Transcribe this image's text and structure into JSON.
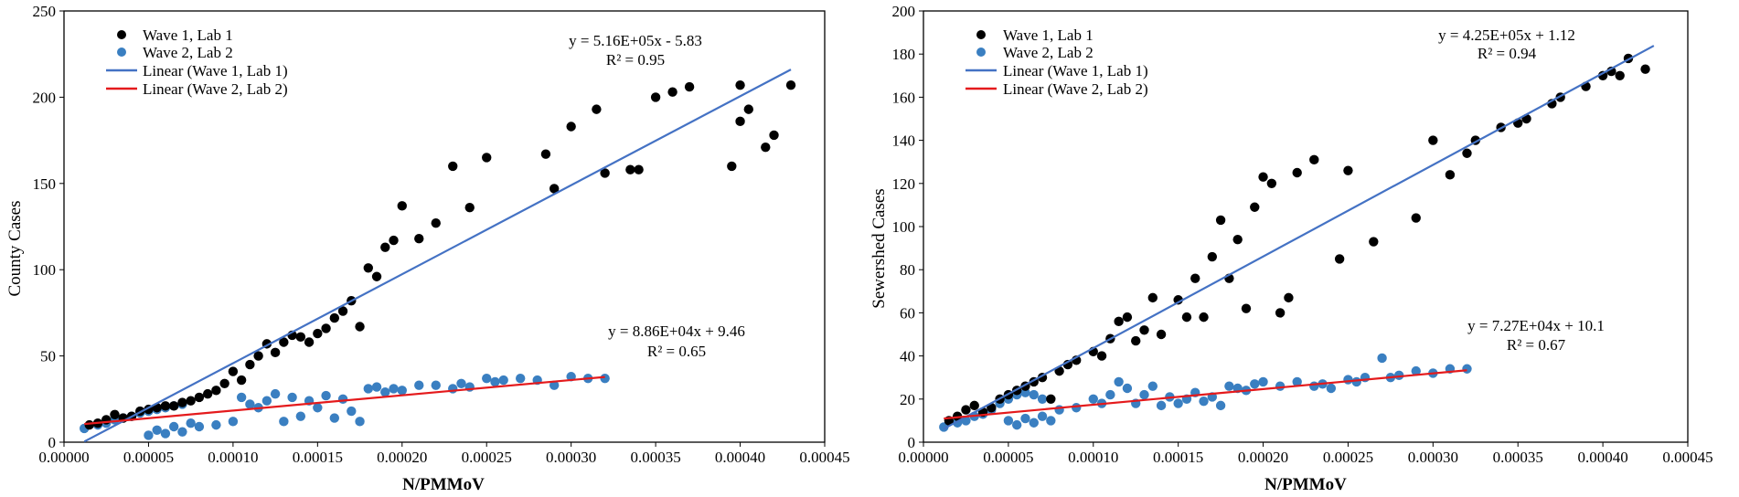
{
  "colors": {
    "wave1": "#000000",
    "wave2": "#3a7fc1",
    "linear1": "#4472c4",
    "linear2": "#e41a1c"
  },
  "chart_data": [
    {
      "type": "scatter",
      "xlabel": "N/PMMoV",
      "ylabel": "County Cases",
      "xlim": [
        0,
        0.00045
      ],
      "ylim": [
        0,
        250
      ],
      "xticks": [
        "0.00000",
        "0.00005",
        "0.00010",
        "0.00015",
        "0.00020",
        "0.00025",
        "0.00030",
        "0.00035",
        "0.00040",
        "0.00045"
      ],
      "yticks": [
        "0",
        "50",
        "100",
        "150",
        "200",
        "250"
      ],
      "legend": [
        "Wave 1, Lab 1",
        "Wave 2, Lab 2",
        "Linear (Wave 1, Lab 1)",
        "Linear (Wave 2, Lab 2)"
      ],
      "annotations": {
        "eq1": "y = 5.16E+05x - 5.83",
        "r1": "R² = 0.95",
        "eq2": "y = 8.86E+04x + 9.46",
        "r2": "R² = 0.65"
      },
      "series": [
        {
          "name": "Wave 1, Lab 1",
          "points": [
            [
              1.5e-05,
              10
            ],
            [
              2e-05,
              11
            ],
            [
              2.5e-05,
              13
            ],
            [
              3e-05,
              16
            ],
            [
              3.5e-05,
              14
            ],
            [
              4e-05,
              15
            ],
            [
              4.5e-05,
              18
            ],
            [
              5e-05,
              19
            ],
            [
              5.5e-05,
              20
            ],
            [
              6e-05,
              21
            ],
            [
              6.5e-05,
              21
            ],
            [
              7e-05,
              23
            ],
            [
              7.5e-05,
              24
            ],
            [
              8e-05,
              26
            ],
            [
              8.5e-05,
              28
            ],
            [
              9e-05,
              30
            ],
            [
              9.5e-05,
              34
            ],
            [
              0.0001,
              41
            ],
            [
              0.000105,
              36
            ],
            [
              0.00011,
              45
            ],
            [
              0.000115,
              50
            ],
            [
              0.00012,
              57
            ],
            [
              0.000125,
              52
            ],
            [
              0.00013,
              58
            ],
            [
              0.000135,
              62
            ],
            [
              0.00014,
              61
            ],
            [
              0.000145,
              58
            ],
            [
              0.00015,
              63
            ],
            [
              0.000155,
              66
            ],
            [
              0.00016,
              72
            ],
            [
              0.000165,
              76
            ],
            [
              0.00017,
              82
            ],
            [
              0.000175,
              67
            ],
            [
              0.00018,
              101
            ],
            [
              0.000185,
              96
            ],
            [
              0.00019,
              113
            ],
            [
              0.000195,
              117
            ],
            [
              0.0002,
              137
            ],
            [
              0.00021,
              118
            ],
            [
              0.00022,
              127
            ],
            [
              0.00023,
              160
            ],
            [
              0.00024,
              136
            ],
            [
              0.00025,
              165
            ],
            [
              0.000285,
              167
            ],
            [
              0.00029,
              147
            ],
            [
              0.0003,
              183
            ],
            [
              0.000315,
              193
            ],
            [
              0.00032,
              156
            ],
            [
              0.000335,
              158
            ],
            [
              0.00034,
              158
            ],
            [
              0.00035,
              200
            ],
            [
              0.00036,
              203
            ],
            [
              0.00037,
              206
            ],
            [
              0.0004,
              207
            ],
            [
              0.000395,
              160
            ],
            [
              0.0004,
              186
            ],
            [
              0.000405,
              193
            ],
            [
              0.000415,
              171
            ],
            [
              0.00042,
              178
            ],
            [
              0.00043,
              207
            ]
          ]
        },
        {
          "name": "Wave 2, Lab 2",
          "points": [
            [
              1.2e-05,
              8
            ],
            [
              2e-05,
              10
            ],
            [
              2.5e-05,
              11
            ],
            [
              3e-05,
              13
            ],
            [
              3.5e-05,
              14
            ],
            [
              4e-05,
              15
            ],
            [
              4.5e-05,
              17
            ],
            [
              5e-05,
              18
            ],
            [
              5.5e-05,
              19
            ],
            [
              6e-05,
              20
            ],
            [
              6.5e-05,
              21
            ],
            [
              7e-05,
              22
            ],
            [
              5e-05,
              4
            ],
            [
              5.5e-05,
              7
            ],
            [
              6e-05,
              5
            ],
            [
              6.5e-05,
              9
            ],
            [
              7e-05,
              6
            ],
            [
              7.5e-05,
              11
            ],
            [
              8e-05,
              9
            ],
            [
              9e-05,
              10
            ],
            [
              0.0001,
              12
            ],
            [
              0.000105,
              26
            ],
            [
              0.00011,
              22
            ],
            [
              0.000115,
              20
            ],
            [
              0.00012,
              24
            ],
            [
              0.000125,
              28
            ],
            [
              0.00013,
              12
            ],
            [
              0.000135,
              26
            ],
            [
              0.00014,
              15
            ],
            [
              0.000145,
              24
            ],
            [
              0.00015,
              20
            ],
            [
              0.000155,
              27
            ],
            [
              0.00016,
              14
            ],
            [
              0.000165,
              25
            ],
            [
              0.00017,
              18
            ],
            [
              0.000175,
              12
            ],
            [
              0.00018,
              31
            ],
            [
              0.000185,
              32
            ],
            [
              0.00019,
              29
            ],
            [
              0.000195,
              31
            ],
            [
              0.0002,
              30
            ],
            [
              0.00021,
              33
            ],
            [
              0.00022,
              33
            ],
            [
              0.00023,
              31
            ],
            [
              0.000235,
              34
            ],
            [
              0.00024,
              32
            ],
            [
              0.00025,
              37
            ],
            [
              0.000255,
              35
            ],
            [
              0.00026,
              36
            ],
            [
              0.00027,
              37
            ],
            [
              0.00028,
              36
            ],
            [
              0.00029,
              33
            ],
            [
              0.0003,
              38
            ],
            [
              0.00031,
              37
            ],
            [
              0.00032,
              37
            ]
          ]
        }
      ],
      "fits": [
        {
          "name": "Linear (Wave 1, Lab 1)",
          "x": [
            1.2e-05,
            0.00043
          ],
          "y": [
            0.36,
            216.05
          ]
        },
        {
          "name": "Linear (Wave 2, Lab 2)",
          "x": [
            1.2e-05,
            0.00032
          ],
          "y": [
            10.52,
            37.81
          ]
        }
      ]
    },
    {
      "type": "scatter",
      "xlabel": "N/PMMoV",
      "ylabel": "Sewershed Cases",
      "xlim": [
        0,
        0.00045
      ],
      "ylim": [
        0,
        200
      ],
      "xticks": [
        "0.00000",
        "0.00005",
        "0.00010",
        "0.00015",
        "0.00020",
        "0.00025",
        "0.00030",
        "0.00035",
        "0.00040",
        "0.00045"
      ],
      "yticks": [
        "0",
        "20",
        "40",
        "60",
        "80",
        "100",
        "120",
        "140",
        "160",
        "180",
        "200"
      ],
      "legend": [
        "Wave 1, Lab 1",
        "Wave 2, Lab 2",
        "Linear (Wave 1, Lab 1)",
        "Linear (Wave 2, Lab 2)"
      ],
      "annotations": {
        "eq1": "y = 4.25E+05x + 1.12",
        "r1": "R² = 0.94",
        "eq2": "y = 7.27E+04x + 10.1",
        "r2": "R² = 0.67"
      },
      "series": [
        {
          "name": "Wave 1, Lab 1",
          "points": [
            [
              1.5e-05,
              10
            ],
            [
              2e-05,
              12
            ],
            [
              2.5e-05,
              15
            ],
            [
              3e-05,
              17
            ],
            [
              3.5e-05,
              14
            ],
            [
              4e-05,
              16
            ],
            [
              4.5e-05,
              20
            ],
            [
              5e-05,
              22
            ],
            [
              5.5e-05,
              24
            ],
            [
              6e-05,
              26
            ],
            [
              6.5e-05,
              28
            ],
            [
              7e-05,
              30
            ],
            [
              7.5e-05,
              20
            ],
            [
              8e-05,
              33
            ],
            [
              8.5e-05,
              36
            ],
            [
              9e-05,
              38
            ],
            [
              0.0001,
              42
            ],
            [
              0.000105,
              40
            ],
            [
              0.00011,
              48
            ],
            [
              0.000115,
              56
            ],
            [
              0.00012,
              58
            ],
            [
              0.000125,
              47
            ],
            [
              0.00013,
              52
            ],
            [
              0.000135,
              67
            ],
            [
              0.00014,
              50
            ],
            [
              0.00015,
              66
            ],
            [
              0.000155,
              58
            ],
            [
              0.00016,
              76
            ],
            [
              0.000165,
              58
            ],
            [
              0.00017,
              86
            ],
            [
              0.000175,
              103
            ],
            [
              0.00018,
              76
            ],
            [
              0.000185,
              94
            ],
            [
              0.00019,
              62
            ],
            [
              0.000195,
              109
            ],
            [
              0.0002,
              123
            ],
            [
              0.000205,
              120
            ],
            [
              0.00021,
              60
            ],
            [
              0.000215,
              67
            ],
            [
              0.00022,
              125
            ],
            [
              0.00023,
              131
            ],
            [
              0.000245,
              85
            ],
            [
              0.00025,
              126
            ],
            [
              0.000265,
              93
            ],
            [
              0.00029,
              104
            ],
            [
              0.0003,
              140
            ],
            [
              0.00031,
              124
            ],
            [
              0.00032,
              134
            ],
            [
              0.000325,
              140
            ],
            [
              0.00034,
              146
            ],
            [
              0.00035,
              148
            ],
            [
              0.000355,
              150
            ],
            [
              0.00037,
              157
            ],
            [
              0.000375,
              160
            ],
            [
              0.00039,
              165
            ],
            [
              0.0004,
              170
            ],
            [
              0.000405,
              172
            ],
            [
              0.00041,
              170
            ],
            [
              0.000415,
              178
            ],
            [
              0.000425,
              173
            ]
          ]
        },
        {
          "name": "Wave 2, Lab 2",
          "points": [
            [
              1.2e-05,
              7
            ],
            [
              2e-05,
              9
            ],
            [
              2.5e-05,
              10
            ],
            [
              3e-05,
              12
            ],
            [
              3.5e-05,
              13
            ],
            [
              4e-05,
              15
            ],
            [
              4.5e-05,
              18
            ],
            [
              5e-05,
              20
            ],
            [
              5.5e-05,
              22
            ],
            [
              6e-05,
              23
            ],
            [
              6.5e-05,
              22
            ],
            [
              7e-05,
              20
            ],
            [
              5e-05,
              10
            ],
            [
              5.5e-05,
              8
            ],
            [
              6e-05,
              11
            ],
            [
              6.5e-05,
              9
            ],
            [
              7e-05,
              12
            ],
            [
              7.5e-05,
              10
            ],
            [
              8e-05,
              15
            ],
            [
              9e-05,
              16
            ],
            [
              0.0001,
              20
            ],
            [
              0.000105,
              18
            ],
            [
              0.00011,
              22
            ],
            [
              0.000115,
              28
            ],
            [
              0.00012,
              25
            ],
            [
              0.000125,
              18
            ],
            [
              0.00013,
              22
            ],
            [
              0.000135,
              26
            ],
            [
              0.00014,
              17
            ],
            [
              0.000145,
              21
            ],
            [
              0.00015,
              18
            ],
            [
              0.000155,
              20
            ],
            [
              0.00016,
              23
            ],
            [
              0.000165,
              19
            ],
            [
              0.00017,
              21
            ],
            [
              0.000175,
              17
            ],
            [
              0.00018,
              26
            ],
            [
              0.000185,
              25
            ],
            [
              0.00019,
              24
            ],
            [
              0.000195,
              27
            ],
            [
              0.0002,
              28
            ],
            [
              0.00021,
              26
            ],
            [
              0.00022,
              28
            ],
            [
              0.00023,
              26
            ],
            [
              0.000235,
              27
            ],
            [
              0.00024,
              25
            ],
            [
              0.00025,
              29
            ],
            [
              0.000255,
              28
            ],
            [
              0.00026,
              30
            ],
            [
              0.00027,
              39
            ],
            [
              0.000275,
              30
            ],
            [
              0.00028,
              31
            ],
            [
              0.00029,
              33
            ],
            [
              0.0003,
              32
            ],
            [
              0.00031,
              34
            ],
            [
              0.00032,
              34
            ]
          ]
        }
      ],
      "fits": [
        {
          "name": "Linear (Wave 1, Lab 1)",
          "x": [
            1.2e-05,
            0.00043
          ],
          "y": [
            6.22,
            183.87
          ]
        },
        {
          "name": "Linear (Wave 2, Lab 2)",
          "x": [
            1.2e-05,
            0.00032
          ],
          "y": [
            10.97,
            33.36
          ]
        }
      ]
    }
  ]
}
